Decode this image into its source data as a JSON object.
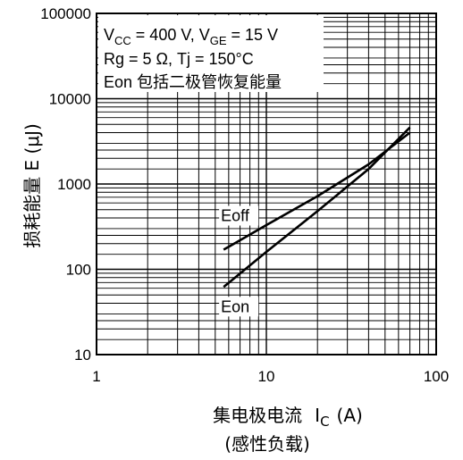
{
  "chart_data": {
    "type": "line",
    "x_scale": "log",
    "y_scale": "log",
    "xlim": [
      1,
      100
    ],
    "ylim": [
      10,
      100000
    ],
    "x_ticks": [
      "1",
      "10",
      "100"
    ],
    "y_ticks": [
      "10",
      "100",
      "1000",
      "10000",
      "100000"
    ],
    "grid": true,
    "ylabel": "损耗能量  E  (μJ)",
    "xlabel_main": "集电极电流",
    "xlabel_symbol": "I",
    "xlabel_sub": "C",
    "xlabel_unit": "(A)",
    "xlabel_note": "(感性负载)",
    "legend_box": {
      "line1": {
        "a": "V",
        "a_sub": "CC",
        "b": " = 400 V, V",
        "b_sub": "GE",
        "c": " = 15 V"
      },
      "line2": "Rg = 5 Ω, Tj = 150°C",
      "line3": "Eon 包括二极管恢复能量"
    },
    "series": [
      {
        "name": "Eoff",
        "x": [
          5.6,
          10,
          20,
          40,
          70
        ],
        "y": [
          170,
          330,
          720,
          1700,
          4000
        ]
      },
      {
        "name": "Eon",
        "x": [
          5.6,
          10,
          20,
          40,
          70
        ],
        "y": [
          62,
          160,
          480,
          1500,
          4600
        ]
      }
    ]
  }
}
